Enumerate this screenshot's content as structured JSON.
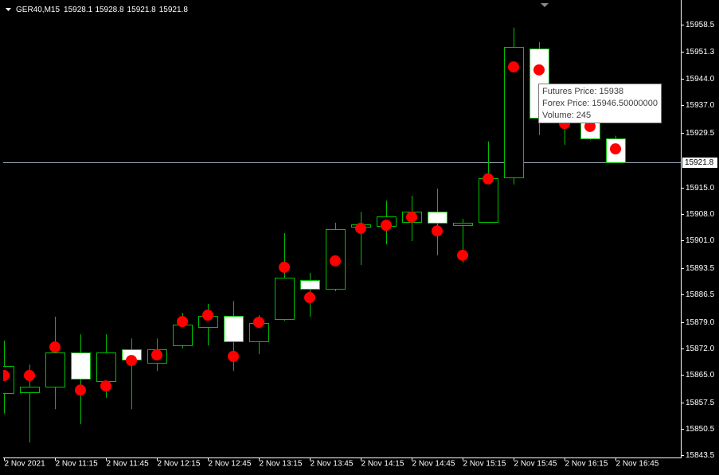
{
  "chart_data": {
    "type": "candlestick",
    "title": "GER40,M15",
    "ohlc_label": [
      15928.1,
      15928.8,
      15921.8,
      15921.8
    ],
    "categories": [
      "2 Nov 2021",
      null,
      "2 Nov 11:15",
      null,
      "2 Nov 11:45",
      null,
      "2 Nov 12:15",
      null,
      "2 Nov 12:45",
      null,
      "2 Nov 13:15",
      null,
      "2 Nov 13:45",
      null,
      "2 Nov 14:15",
      null,
      "2 Nov 14:45",
      null,
      "2 Nov 15:15",
      null,
      "2 Nov 15:45",
      null,
      "2 Nov 16:15",
      null,
      "2 Nov 16:45"
    ],
    "open": [
      15860.1,
      15860.3,
      15861.8,
      15870.9,
      15863.3,
      15871.8,
      15868.2,
      15872.8,
      15877.7,
      15880.7,
      15873.9,
      15879.8,
      15890.3,
      15887.9,
      15904.5,
      15904.7,
      15905.8,
      15908.5,
      15904.9,
      15905.8,
      15917.7,
      15952.1,
      15937.9,
      15935.3,
      15928.1
    ],
    "high": [
      15874.1,
      15867.7,
      15880.5,
      15875.8,
      15875.8,
      15874.7,
      15874.7,
      15881.5,
      15883.9,
      15884.7,
      15880.9,
      15902.8,
      15892.2,
      15905.6,
      15908.5,
      15911.5,
      15912.8,
      15914.7,
      15906.6,
      15927.3,
      15957.7,
      15953.8,
      15940.6,
      15937.0,
      15928.8
    ],
    "low": [
      15854.6,
      15846.9,
      15855.8,
      15851.8,
      15858.8,
      15855.8,
      15866.0,
      15872.0,
      15872.8,
      15866.0,
      15870.5,
      15879.4,
      15880.5,
      15887.3,
      15894.3,
      15899.8,
      15900.7,
      15896.9,
      15894.9,
      15905.6,
      15915.8,
      15929.0,
      15926.4,
      15927.7,
      15921.8
    ],
    "close": [
      15867.3,
      15861.8,
      15870.9,
      15863.9,
      15870.9,
      15869.0,
      15871.8,
      15878.4,
      15880.7,
      15873.9,
      15878.8,
      15890.9,
      15887.9,
      15903.9,
      15905.1,
      15907.3,
      15908.5,
      15905.6,
      15905.6,
      15917.5,
      15952.5,
      15933.6,
      15933.2,
      15928.1,
      15921.8
    ],
    "up_color": "#000000",
    "down_color": "#ffffff",
    "outline_color": "#00c000",
    "markers": {
      "color": "#ff0000",
      "values": [
        15864.8,
        15864.8,
        15872.4,
        15860.9,
        15862.0,
        15868.8,
        15870.3,
        15879.2,
        15880.9,
        15869.9,
        15879.0,
        15893.7,
        15885.6,
        15895.4,
        15904.1,
        15904.9,
        15907.1,
        15903.4,
        15896.9,
        15917.3,
        15947.2,
        15946.4,
        15932.1,
        15931.3,
        15925.3
      ]
    },
    "price_line": 15921.8,
    "ylim": [
      15842.9,
      15964.0
    ],
    "yticks": [
      15958.5,
      15951.3,
      {
        "value": 15944,
        "label": "15944.0"
      },
      {
        "value": 15937,
        "label": "15937.0"
      },
      15929.5,
      {
        "value": 15915,
        "label": "15915.0"
      },
      {
        "value": 15908,
        "label": "15908.0"
      },
      {
        "value": 15901,
        "label": "15901.0"
      },
      15893.5,
      15886.5,
      {
        "value": 15879,
        "label": "15879.0"
      },
      {
        "value": 15872,
        "label": "15872.0"
      },
      {
        "value": 15865,
        "label": "15865.0"
      },
      15857.5,
      15850.5,
      15843.5
    ],
    "grid": false,
    "tooltip": [
      "Futures Price: 15938",
      "Forex Price: 15946.50000000",
      "Volume: 245"
    ]
  }
}
